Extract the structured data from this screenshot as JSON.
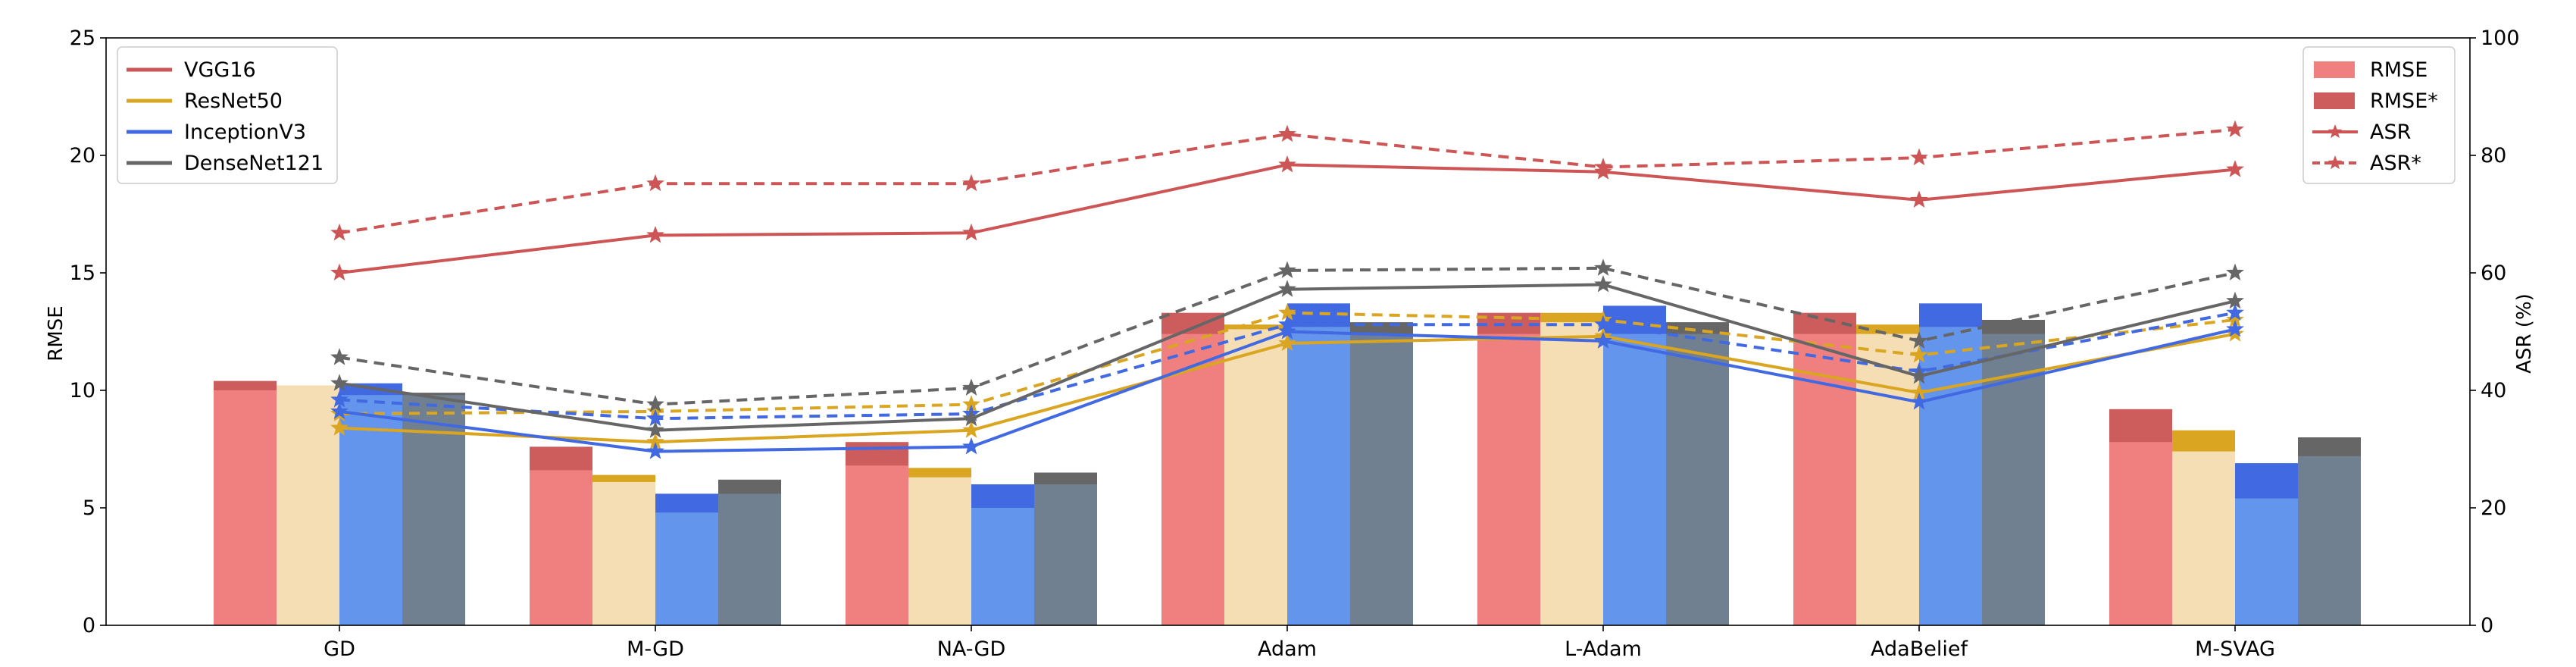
{
  "chart_data": {
    "type": "bar",
    "categories": [
      "GD",
      "M-GD",
      "NA-GD",
      "Adam",
      "L-Adam",
      "AdaBelief",
      "M-SVAG"
    ],
    "models": [
      "VGG16",
      "ResNet50",
      "InceptionV3",
      "DenseNet121"
    ],
    "colors": {
      "line": [
        "#cd5555",
        "#daa520",
        "#4169e1",
        "#666666"
      ],
      "bar_light": [
        "#f08080",
        "#f5deb3",
        "#6495ed",
        "#708090"
      ],
      "bar_dark": [
        "#cd5c5c",
        "#daa520",
        "#4169e1",
        "#666666"
      ]
    },
    "left_axis": {
      "label": "RMSE",
      "ylim": [
        0,
        25
      ],
      "ticks": [
        "0",
        "5",
        "10",
        "15",
        "20",
        "25"
      ]
    },
    "right_axis": {
      "label": "ASR (%)",
      "ylim": [
        0,
        100
      ],
      "ticks": [
        "0",
        "20",
        "40",
        "60",
        "80",
        "100"
      ]
    },
    "rmse": [
      [
        10.0,
        6.6,
        6.8,
        12.4,
        12.4,
        12.4,
        7.8
      ],
      [
        10.2,
        6.1,
        6.3,
        12.6,
        12.9,
        12.4,
        7.4
      ],
      [
        9.8,
        4.8,
        5.0,
        12.7,
        12.4,
        12.7,
        5.4
      ],
      [
        9.8,
        5.6,
        6.0,
        12.4,
        12.4,
        12.4,
        7.2
      ]
    ],
    "rmse_star": [
      [
        10.4,
        7.6,
        7.8,
        13.3,
        13.3,
        13.3,
        9.2
      ],
      [
        10.2,
        6.4,
        6.7,
        12.8,
        13.3,
        12.8,
        8.3
      ],
      [
        10.3,
        5.6,
        6.0,
        13.7,
        13.6,
        13.7,
        6.9
      ],
      [
        9.9,
        6.2,
        6.5,
        12.9,
        12.9,
        13.0,
        8.0
      ]
    ],
    "asr": [
      [
        60,
        66.4,
        66.8,
        78.4,
        77.2,
        72.4,
        77.6
      ],
      [
        33.6,
        31.2,
        33.2,
        48,
        49.2,
        39.6,
        49.6
      ],
      [
        36.4,
        29.6,
        30.4,
        50,
        48.4,
        38,
        50.4
      ],
      [
        41.2,
        33.2,
        35.2,
        57.2,
        58,
        42.4,
        55.2
      ]
    ],
    "asr_star": [
      [
        66.8,
        75.2,
        75.2,
        83.6,
        78,
        79.6,
        84.4
      ],
      [
        36,
        36.4,
        37.6,
        53.2,
        52,
        46,
        52
      ],
      [
        38.4,
        35.2,
        36,
        51.2,
        51.2,
        43.2,
        53.2
      ],
      [
        45.6,
        37.6,
        40.4,
        60.4,
        60.8,
        48.4,
        60
      ]
    ],
    "legend_models": {
      "position": "upper-left",
      "entries": [
        "VGG16",
        "ResNet50",
        "InceptionV3",
        "DenseNet121"
      ]
    },
    "legend_metrics": {
      "position": "upper-right",
      "entries": [
        "RMSE",
        "RMSE*",
        "ASR",
        "ASR*"
      ]
    },
    "grid": false
  }
}
